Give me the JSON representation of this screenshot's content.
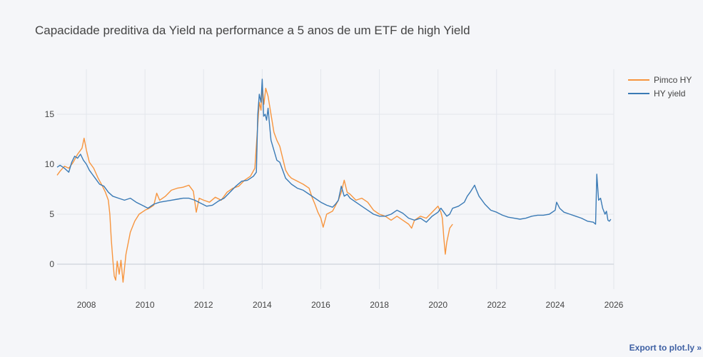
{
  "chart_data": {
    "type": "line",
    "title": "Capacidade preditiva da Yield na performance a 5 anos de um ETF de high Yield",
    "xlabel": "",
    "ylabel": "",
    "xlim": [
      2007.0,
      2026.0
    ],
    "ylim": [
      -2.5,
      19.5
    ],
    "x_ticks": [
      2008,
      2010,
      2012,
      2014,
      2016,
      2018,
      2020,
      2022,
      2024,
      2026
    ],
    "x_tick_labels": [
      "2008",
      "2010",
      "2012",
      "2014",
      "2016",
      "2018",
      "2020",
      "2022",
      "2024",
      "2026"
    ],
    "y_ticks": [
      0,
      5,
      10,
      15
    ],
    "y_tick_labels": [
      "0",
      "5",
      "10",
      "15"
    ],
    "grid": true,
    "legend_position": "top-right",
    "series": [
      {
        "name": "Pimco HY",
        "color": "#f7953e",
        "points": [
          [
            2007.0,
            8.9
          ],
          [
            2007.1,
            9.3
          ],
          [
            2007.25,
            9.8
          ],
          [
            2007.4,
            9.6
          ],
          [
            2007.55,
            10.2
          ],
          [
            2007.7,
            11.0
          ],
          [
            2007.85,
            11.6
          ],
          [
            2007.92,
            12.6
          ],
          [
            2008.0,
            11.4
          ],
          [
            2008.1,
            10.2
          ],
          [
            2008.25,
            9.6
          ],
          [
            2008.4,
            8.6
          ],
          [
            2008.55,
            7.8
          ],
          [
            2008.65,
            7.2
          ],
          [
            2008.75,
            6.4
          ],
          [
            2008.8,
            5.0
          ],
          [
            2008.85,
            2.5
          ],
          [
            2008.9,
            0.5
          ],
          [
            2008.95,
            -1.2
          ],
          [
            2009.0,
            -1.6
          ],
          [
            2009.05,
            0.3
          ],
          [
            2009.12,
            -1.0
          ],
          [
            2009.18,
            0.4
          ],
          [
            2009.25,
            -1.8
          ],
          [
            2009.35,
            1.0
          ],
          [
            2009.5,
            3.2
          ],
          [
            2009.65,
            4.3
          ],
          [
            2009.8,
            5.0
          ],
          [
            2010.0,
            5.4
          ],
          [
            2010.15,
            5.6
          ],
          [
            2010.3,
            5.9
          ],
          [
            2010.4,
            7.1
          ],
          [
            2010.5,
            6.4
          ],
          [
            2010.7,
            6.8
          ],
          [
            2010.9,
            7.4
          ],
          [
            2011.1,
            7.6
          ],
          [
            2011.3,
            7.7
          ],
          [
            2011.5,
            7.9
          ],
          [
            2011.65,
            7.3
          ],
          [
            2011.75,
            5.2
          ],
          [
            2011.85,
            6.6
          ],
          [
            2012.0,
            6.4
          ],
          [
            2012.2,
            6.2
          ],
          [
            2012.4,
            6.7
          ],
          [
            2012.6,
            6.4
          ],
          [
            2012.8,
            7.2
          ],
          [
            2013.0,
            7.6
          ],
          [
            2013.2,
            7.8
          ],
          [
            2013.4,
            8.4
          ],
          [
            2013.6,
            8.8
          ],
          [
            2013.75,
            9.6
          ],
          [
            2013.85,
            14.0
          ],
          [
            2013.9,
            16.2
          ],
          [
            2013.96,
            15.4
          ],
          [
            2014.0,
            17.8
          ],
          [
            2014.06,
            16.0
          ],
          [
            2014.12,
            17.6
          ],
          [
            2014.2,
            16.8
          ],
          [
            2014.3,
            15.0
          ],
          [
            2014.4,
            13.2
          ],
          [
            2014.5,
            12.4
          ],
          [
            2014.6,
            11.8
          ],
          [
            2014.7,
            10.6
          ],
          [
            2014.8,
            9.4
          ],
          [
            2014.9,
            8.9
          ],
          [
            2015.0,
            8.6
          ],
          [
            2015.2,
            8.3
          ],
          [
            2015.4,
            8.0
          ],
          [
            2015.6,
            7.6
          ],
          [
            2015.7,
            6.7
          ],
          [
            2015.8,
            6.0
          ],
          [
            2015.9,
            5.2
          ],
          [
            2016.0,
            4.6
          ],
          [
            2016.08,
            3.7
          ],
          [
            2016.2,
            5.0
          ],
          [
            2016.4,
            5.3
          ],
          [
            2016.6,
            6.4
          ],
          [
            2016.7,
            7.2
          ],
          [
            2016.8,
            8.4
          ],
          [
            2016.9,
            7.2
          ],
          [
            2017.0,
            7.0
          ],
          [
            2017.2,
            6.4
          ],
          [
            2017.4,
            6.6
          ],
          [
            2017.6,
            6.2
          ],
          [
            2017.8,
            5.4
          ],
          [
            2018.0,
            5.0
          ],
          [
            2018.2,
            4.8
          ],
          [
            2018.4,
            4.4
          ],
          [
            2018.6,
            4.8
          ],
          [
            2018.8,
            4.4
          ],
          [
            2019.0,
            4.0
          ],
          [
            2019.1,
            3.6
          ],
          [
            2019.2,
            4.4
          ],
          [
            2019.4,
            4.8
          ],
          [
            2019.6,
            4.6
          ],
          [
            2019.8,
            5.2
          ],
          [
            2020.0,
            5.8
          ],
          [
            2020.1,
            5.2
          ],
          [
            2020.15,
            4.6
          ],
          [
            2020.2,
            2.6
          ],
          [
            2020.25,
            1.0
          ],
          [
            2020.3,
            2.2
          ],
          [
            2020.4,
            3.6
          ],
          [
            2020.5,
            4.0
          ]
        ]
      },
      {
        "name": "HY yield",
        "color": "#3a7ab5",
        "points": [
          [
            2007.0,
            9.7
          ],
          [
            2007.1,
            9.9
          ],
          [
            2007.25,
            9.6
          ],
          [
            2007.4,
            9.2
          ],
          [
            2007.5,
            10.2
          ],
          [
            2007.6,
            10.8
          ],
          [
            2007.7,
            10.6
          ],
          [
            2007.8,
            11.0
          ],
          [
            2007.9,
            10.4
          ],
          [
            2008.0,
            10.0
          ],
          [
            2008.1,
            9.4
          ],
          [
            2008.2,
            9.0
          ],
          [
            2008.3,
            8.6
          ],
          [
            2008.45,
            8.0
          ],
          [
            2008.6,
            7.8
          ],
          [
            2008.75,
            7.2
          ],
          [
            2008.9,
            6.8
          ],
          [
            2009.1,
            6.6
          ],
          [
            2009.3,
            6.4
          ],
          [
            2009.5,
            6.6
          ],
          [
            2009.7,
            6.2
          ],
          [
            2009.9,
            5.9
          ],
          [
            2010.1,
            5.6
          ],
          [
            2010.3,
            6.0
          ],
          [
            2010.5,
            6.2
          ],
          [
            2010.7,
            6.3
          ],
          [
            2010.9,
            6.4
          ],
          [
            2011.1,
            6.5
          ],
          [
            2011.3,
            6.6
          ],
          [
            2011.5,
            6.6
          ],
          [
            2011.7,
            6.4
          ],
          [
            2011.9,
            6.1
          ],
          [
            2012.1,
            5.8
          ],
          [
            2012.3,
            5.9
          ],
          [
            2012.5,
            6.3
          ],
          [
            2012.7,
            6.6
          ],
          [
            2012.9,
            7.2
          ],
          [
            2013.1,
            7.8
          ],
          [
            2013.3,
            8.3
          ],
          [
            2013.5,
            8.4
          ],
          [
            2013.7,
            8.8
          ],
          [
            2013.8,
            9.2
          ],
          [
            2013.85,
            15.0
          ],
          [
            2013.9,
            17.0
          ],
          [
            2013.96,
            16.2
          ],
          [
            2014.0,
            18.5
          ],
          [
            2014.05,
            14.8
          ],
          [
            2014.1,
            15.0
          ],
          [
            2014.15,
            14.4
          ],
          [
            2014.2,
            15.6
          ],
          [
            2014.25,
            14.0
          ],
          [
            2014.3,
            12.4
          ],
          [
            2014.4,
            11.4
          ],
          [
            2014.5,
            10.4
          ],
          [
            2014.6,
            10.2
          ],
          [
            2014.7,
            9.4
          ],
          [
            2014.8,
            8.6
          ],
          [
            2014.9,
            8.3
          ],
          [
            2015.0,
            8.0
          ],
          [
            2015.2,
            7.6
          ],
          [
            2015.4,
            7.4
          ],
          [
            2015.6,
            7.0
          ],
          [
            2015.8,
            6.6
          ],
          [
            2016.0,
            6.2
          ],
          [
            2016.2,
            5.9
          ],
          [
            2016.4,
            5.7
          ],
          [
            2016.5,
            6.0
          ],
          [
            2016.6,
            6.4
          ],
          [
            2016.7,
            7.8
          ],
          [
            2016.8,
            6.8
          ],
          [
            2016.9,
            7.0
          ],
          [
            2017.0,
            6.6
          ],
          [
            2017.2,
            6.2
          ],
          [
            2017.4,
            5.8
          ],
          [
            2017.6,
            5.4
          ],
          [
            2017.8,
            5.0
          ],
          [
            2018.0,
            4.8
          ],
          [
            2018.2,
            4.8
          ],
          [
            2018.4,
            5.0
          ],
          [
            2018.6,
            5.4
          ],
          [
            2018.8,
            5.1
          ],
          [
            2019.0,
            4.6
          ],
          [
            2019.2,
            4.4
          ],
          [
            2019.4,
            4.6
          ],
          [
            2019.6,
            4.2
          ],
          [
            2019.8,
            4.8
          ],
          [
            2020.0,
            5.2
          ],
          [
            2020.1,
            5.6
          ],
          [
            2020.2,
            5.2
          ],
          [
            2020.3,
            4.8
          ],
          [
            2020.4,
            5.0
          ],
          [
            2020.5,
            5.6
          ],
          [
            2020.7,
            5.8
          ],
          [
            2020.9,
            6.2
          ],
          [
            2021.0,
            6.8
          ],
          [
            2021.1,
            7.2
          ],
          [
            2021.25,
            7.9
          ],
          [
            2021.3,
            7.5
          ],
          [
            2021.4,
            6.8
          ],
          [
            2021.6,
            6.0
          ],
          [
            2021.8,
            5.4
          ],
          [
            2022.0,
            5.2
          ],
          [
            2022.2,
            4.9
          ],
          [
            2022.4,
            4.7
          ],
          [
            2022.6,
            4.6
          ],
          [
            2022.8,
            4.5
          ],
          [
            2023.0,
            4.6
          ],
          [
            2023.2,
            4.8
          ],
          [
            2023.4,
            4.9
          ],
          [
            2023.6,
            4.9
          ],
          [
            2023.8,
            5.0
          ],
          [
            2024.0,
            5.4
          ],
          [
            2024.05,
            6.2
          ],
          [
            2024.15,
            5.6
          ],
          [
            2024.3,
            5.2
          ],
          [
            2024.5,
            5.0
          ],
          [
            2024.7,
            4.8
          ],
          [
            2024.9,
            4.6
          ],
          [
            2025.1,
            4.3
          ],
          [
            2025.3,
            4.2
          ],
          [
            2025.38,
            4.0
          ],
          [
            2025.42,
            9.0
          ],
          [
            2025.48,
            6.4
          ],
          [
            2025.55,
            6.6
          ],
          [
            2025.62,
            5.6
          ],
          [
            2025.7,
            5.0
          ],
          [
            2025.75,
            5.3
          ],
          [
            2025.8,
            4.4
          ],
          [
            2025.85,
            4.3
          ],
          [
            2025.9,
            4.5
          ]
        ]
      }
    ]
  },
  "footer": {
    "export_link": "Export to plot.ly »"
  }
}
